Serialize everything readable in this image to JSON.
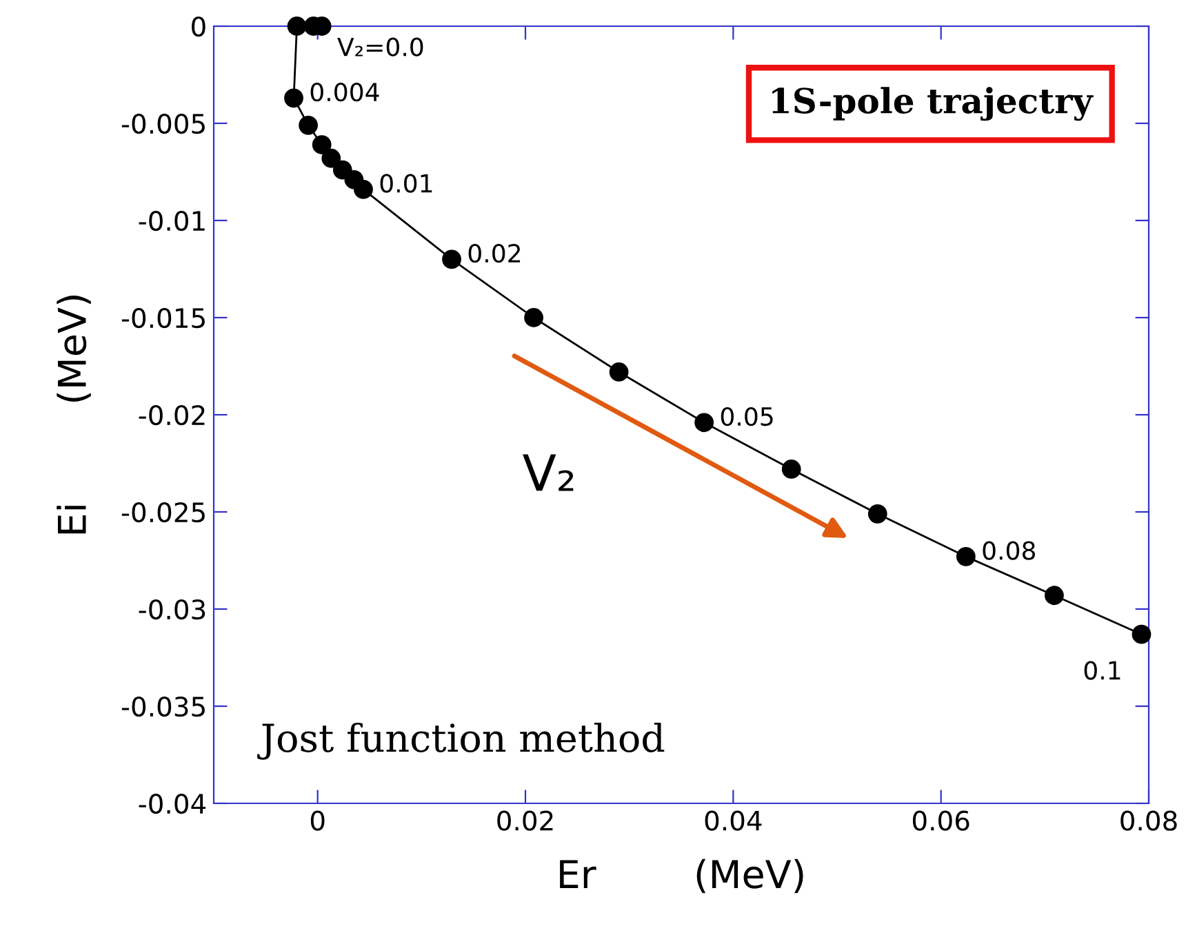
{
  "chart_data": {
    "type": "line",
    "xlabel": "Er        (MeV)",
    "ylabel": "Ei        (MeV)",
    "x": [
      0.0004,
      -0.0004,
      -0.002,
      -0.0023,
      -0.0009,
      0.0004,
      0.0013,
      0.0024,
      0.0035,
      0.0044,
      0.0129,
      0.0208,
      0.029,
      0.0372,
      0.0456,
      0.0539,
      0.0624,
      0.0709,
      0.0793
    ],
    "values": [
      0,
      0,
      0,
      -0.0037,
      -0.0051,
      -0.0061,
      -0.0068,
      -0.0074,
      -0.0079,
      -0.0084,
      -0.012,
      -0.015,
      -0.0178,
      -0.0204,
      -0.0228,
      -0.0251,
      -0.0273,
      -0.0293,
      -0.0313
    ],
    "color": "#000000",
    "marker": "circle",
    "line_style": "solid",
    "grid": false,
    "legend": false,
    "xlim": [
      -0.01,
      0.08
    ],
    "ylim": [
      -0.04,
      0
    ],
    "xticks": [
      0,
      0.02,
      0.04,
      0.06,
      0.08
    ],
    "yticks": [
      -0.04,
      -0.035,
      -0.03,
      -0.025,
      -0.02,
      -0.015,
      -0.01,
      -0.005,
      0
    ],
    "annotations": [
      {
        "text": "V₂=0.0",
        "x": 0.0004,
        "y": 0
      },
      {
        "text": "0.004",
        "x": -0.0023,
        "y": -0.0037
      },
      {
        "text": "0.01",
        "x": 0.0044,
        "y": -0.0084
      },
      {
        "text": "0.02",
        "x": 0.0129,
        "y": -0.012
      },
      {
        "text": "0.05",
        "x": 0.0372,
        "y": -0.0204
      },
      {
        "text": "0.08",
        "x": 0.0624,
        "y": -0.0273
      },
      {
        "text": "0.1",
        "x": 0.0793,
        "y": -0.0313
      },
      "1S-pole trajectry",
      "V₂",
      "Jost function method"
    ]
  }
}
